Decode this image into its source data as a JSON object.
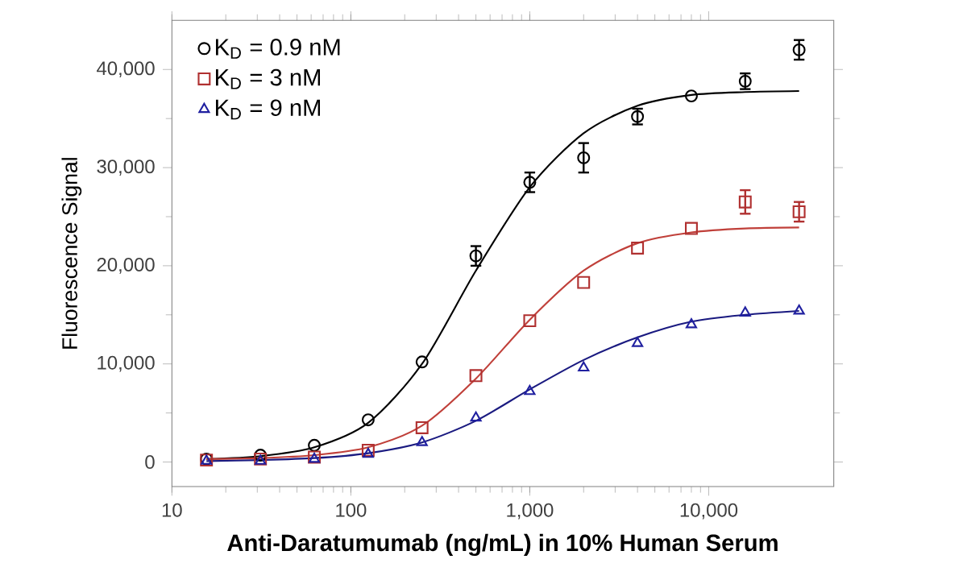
{
  "chart_data": {
    "type": "scatter",
    "xlabel": "Anti-Daratumumab (ng/mL) in 10% Human Serum",
    "ylabel": "Fluorescence Signal",
    "log": "x",
    "xlim": [
      10,
      50000
    ],
    "ylim": [
      -2500,
      45000
    ],
    "xticks": [
      10,
      100,
      {
        "value": 1000,
        "label": "1,000"
      },
      {
        "value": 10000,
        "label": "10,000"
      }
    ],
    "yticks": [
      0,
      {
        "value": 10000,
        "label": "10,000"
      },
      {
        "value": 20000,
        "label": "20,000"
      },
      {
        "value": 30000,
        "label": "30,000"
      },
      {
        "value": 40000,
        "label": "40,000"
      }
    ],
    "grid": false,
    "legend": "top left",
    "series": [
      {
        "name": "K$_{D}$ = 0.9 nM",
        "type": "scatter",
        "marker": "circle",
        "color": "#000000",
        "x": [
          15.6,
          31.25,
          62.5,
          125,
          250,
          500,
          1000,
          2000,
          4000,
          8000,
          16000,
          32000
        ],
        "values": [
          300,
          700,
          1700,
          4300,
          10200,
          21000,
          28500,
          31000,
          35200,
          37300,
          38800,
          42000
        ],
        "errors": [
          null,
          null,
          null,
          null,
          null,
          1000,
          1000,
          1500,
          800,
          null,
          800,
          1000
        ]
      },
      {
        "name": "K$_{D}$ = 3 nM",
        "type": "scatter",
        "marker": "square",
        "color": "#b03030",
        "x": [
          15.6,
          31.25,
          62.5,
          125,
          250,
          500,
          1000,
          2000,
          4000,
          8000,
          16000,
          32000
        ],
        "values": [
          200,
          300,
          500,
          1200,
          3500,
          8800,
          14400,
          18300,
          21800,
          23800,
          26500,
          25500
        ],
        "errors": [
          null,
          null,
          null,
          null,
          null,
          null,
          null,
          null,
          null,
          null,
          1200,
          1000
        ]
      },
      {
        "name": "K$_{D}$ = 9 nM",
        "type": "scatter",
        "marker": "triangle",
        "color": "#2020a0",
        "x": [
          15.6,
          31.25,
          62.5,
          125,
          250,
          500,
          1000,
          2000,
          4000,
          8000,
          16000,
          32000
        ],
        "values": [
          100,
          100,
          300,
          800,
          2000,
          4500,
          7200,
          9600,
          12100,
          14000,
          15200,
          15400
        ]
      },
      {
        "type": "line",
        "marker": "none",
        "color": "#000000",
        "x": [
          15.6,
          31.25,
          62.5,
          125,
          250,
          500,
          1000,
          2000,
          4000,
          8000,
          16000,
          32000
        ],
        "values": [
          300,
          600,
          1500,
          4000,
          10000,
          19500,
          28000,
          33500,
          36300,
          37400,
          37700,
          37800
        ]
      },
      {
        "type": "line",
        "marker": "none",
        "color": "#c0403a",
        "x": [
          15.6,
          31.25,
          62.5,
          125,
          250,
          500,
          1000,
          2000,
          4000,
          8000,
          16000,
          32000
        ],
        "values": [
          300,
          400,
          700,
          1500,
          3700,
          8500,
          14500,
          19500,
          22300,
          23400,
          23800,
          23900
        ]
      },
      {
        "type": "line",
        "marker": "none",
        "color": "#1a1a80",
        "x": [
          15.6,
          31.25,
          62.5,
          125,
          250,
          500,
          1000,
          2000,
          4000,
          8000,
          16000,
          32000
        ],
        "values": [
          100,
          200,
          400,
          900,
          2000,
          4200,
          7400,
          10400,
          12700,
          14300,
          15000,
          15400
        ]
      }
    ]
  }
}
